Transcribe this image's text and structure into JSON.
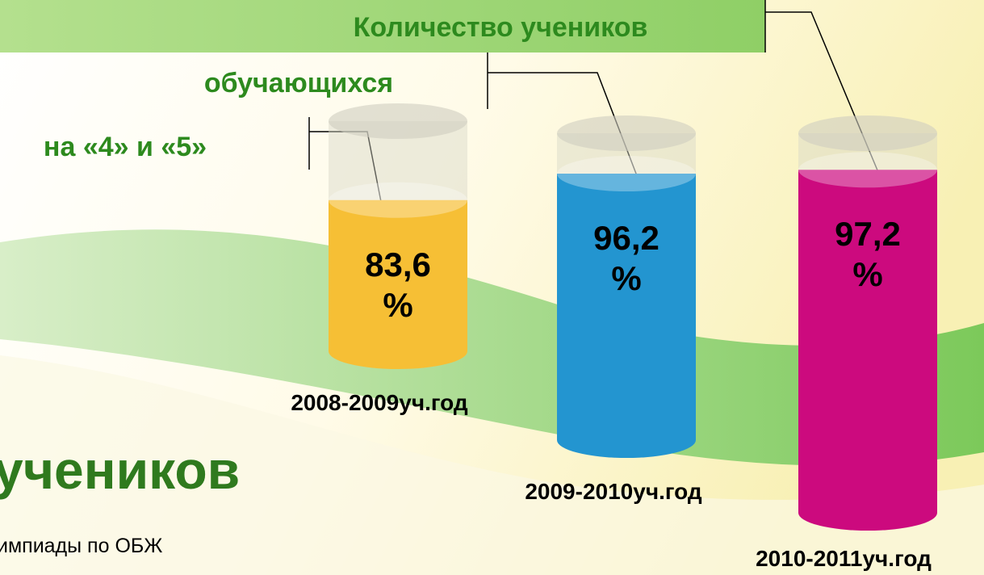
{
  "chart_data": {
    "type": "cylinder",
    "title_lines": [
      "Количество учеников",
      "обучающихся",
      "на «4» и «5»"
    ],
    "categories": [
      "2008-2009уч.год",
      "2009-2010уч.год",
      "2010-2011уч.год"
    ],
    "values": [
      83.6,
      96.2,
      97.2
    ],
    "value_labels": [
      "83,6 %",
      "96,2 %",
      "97,2 %"
    ],
    "colors": [
      "#f6bf35",
      "#2395d0",
      "#cc0a7e"
    ]
  },
  "slide": {
    "heading": "учеников",
    "text": "импиады по ОБЖ"
  }
}
